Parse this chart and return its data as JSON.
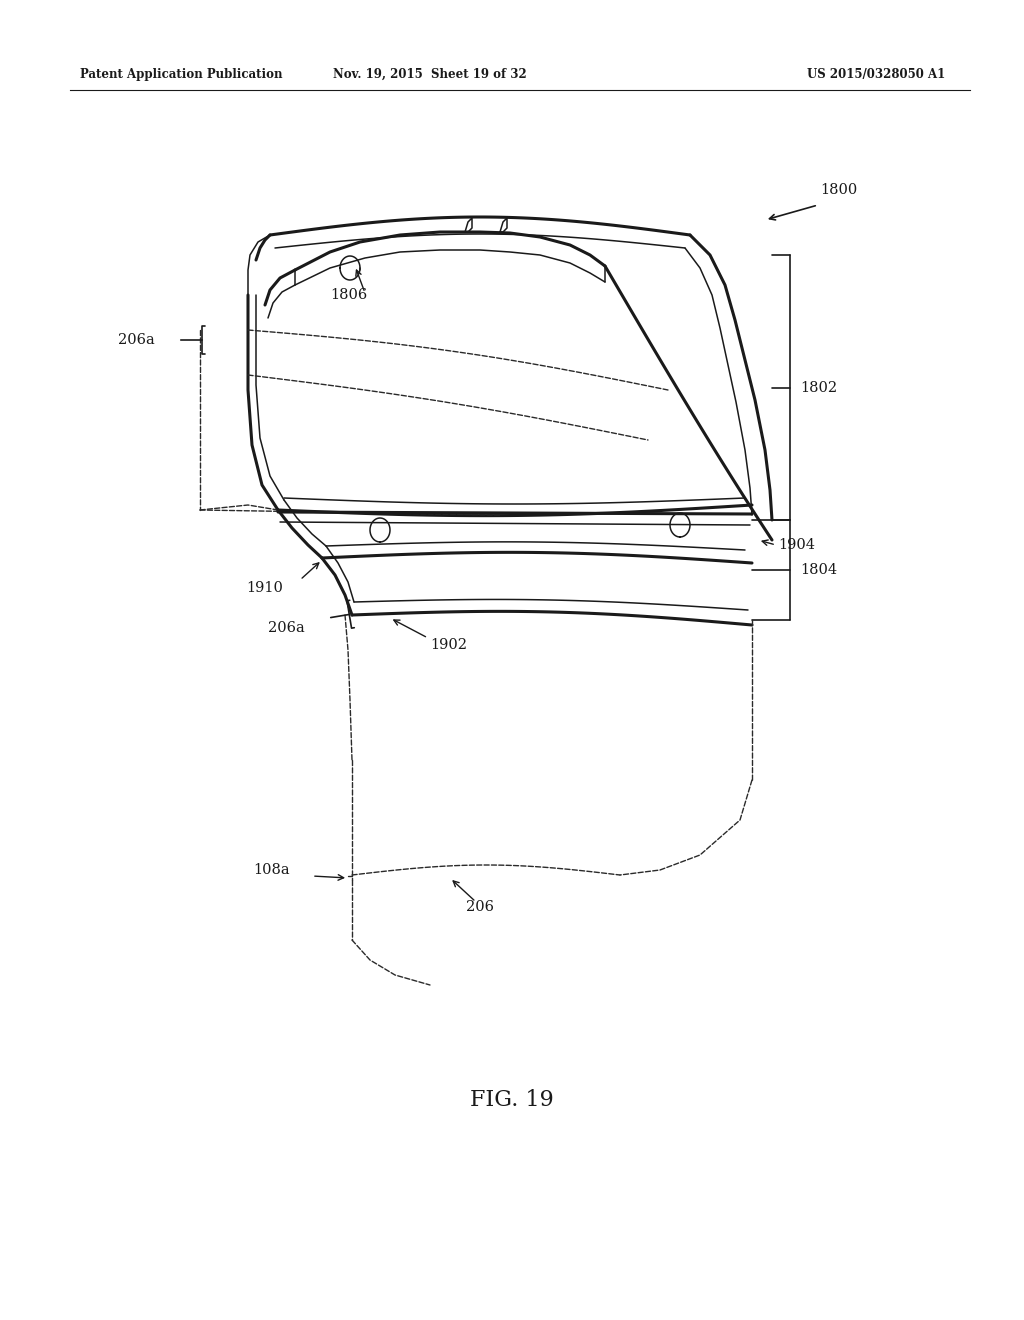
{
  "background_color": "#ffffff",
  "header_left": "Patent Application Publication",
  "header_mid": "Nov. 19, 2015  Sheet 19 of 32",
  "header_right": "US 2015/0328050 A1",
  "figure_label": "FIG. 19",
  "line_color": "#1a1a1a",
  "dash_color": "#2a2a2a",
  "lw_main": 1.8,
  "lw_thin": 1.1,
  "lw_dash": 1.0,
  "lw_thick": 2.2
}
